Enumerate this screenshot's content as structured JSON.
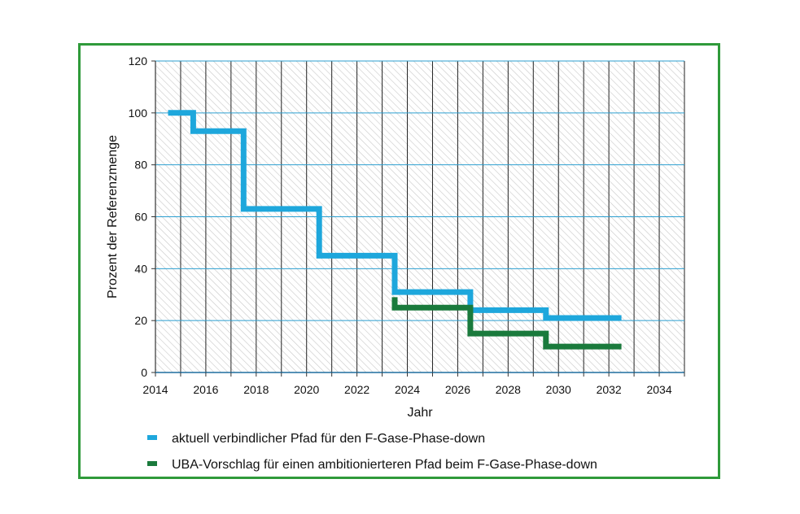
{
  "chart_data": {
    "type": "line",
    "step": true,
    "xlabel": "Jahr",
    "ylabel": "Prozent der Referenzmenge",
    "xlim": [
      2014,
      2035
    ],
    "ylim": [
      0,
      120
    ],
    "xticks": [
      2014,
      2016,
      2018,
      2020,
      2022,
      2024,
      2026,
      2028,
      2030,
      2032,
      2034
    ],
    "yticks": [
      0,
      20,
      40,
      60,
      80,
      100,
      120
    ],
    "grid": true,
    "background": "diagonal-hatch",
    "legend_position": "bottom",
    "series": [
      {
        "name": "aktuell verbindlicher Pfad für den F-Gase-Phase-down",
        "color": "#1ea7dc",
        "points": [
          [
            2014.5,
            100
          ],
          [
            2015.5,
            100
          ],
          [
            2015.5,
            93
          ],
          [
            2017.5,
            93
          ],
          [
            2017.5,
            63
          ],
          [
            2020.5,
            63
          ],
          [
            2020.5,
            45
          ],
          [
            2023.5,
            45
          ],
          [
            2023.5,
            31
          ],
          [
            2026.5,
            31
          ],
          [
            2026.5,
            24
          ],
          [
            2029.5,
            24
          ],
          [
            2029.5,
            21
          ],
          [
            2032.5,
            21
          ]
        ]
      },
      {
        "name": "UBA-Vorschlag für einen ambitionierteren Pfad beim F-Gase-Phase-down",
        "color": "#1a7a3c",
        "points": [
          [
            2023.5,
            29
          ],
          [
            2023.5,
            25
          ],
          [
            2026.5,
            25
          ],
          [
            2026.5,
            15
          ],
          [
            2029.5,
            15
          ],
          [
            2029.5,
            10
          ],
          [
            2032.5,
            10
          ]
        ]
      }
    ]
  },
  "frame_color": "#2f9a3a"
}
